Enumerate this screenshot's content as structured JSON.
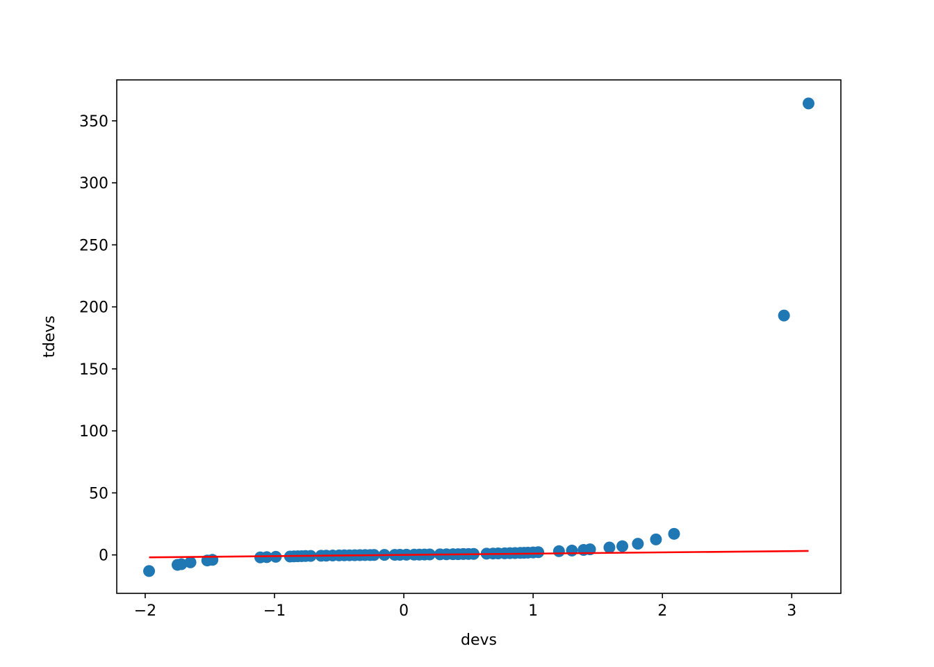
{
  "chart_data": {
    "type": "scatter",
    "title": "",
    "xlabel": "devs",
    "ylabel": "tdevs",
    "xlim": [
      -2.22,
      3.38
    ],
    "ylim": [
      -31,
      383
    ],
    "xticks": [
      -2,
      -1,
      0,
      1,
      2,
      3
    ],
    "xtick_labels": [
      "−2",
      "−1",
      "0",
      "1",
      "2",
      "3"
    ],
    "yticks": [
      0,
      50,
      100,
      150,
      200,
      250,
      300,
      350
    ],
    "ytick_labels": [
      "0",
      "50",
      "100",
      "150",
      "200",
      "250",
      "300",
      "350"
    ],
    "grid": false,
    "legend": "none",
    "colors": {
      "points": "#1f77b4",
      "fit_line": "#ff0000"
    },
    "series": [
      {
        "type": "scatter",
        "x": [
          -1.97,
          -1.75,
          -1.72,
          -1.65,
          -1.52,
          -1.48,
          -1.11,
          -1.06,
          -0.99,
          -0.88,
          -0.85,
          -0.82,
          -0.79,
          -0.76,
          -0.72,
          -0.64,
          -0.6,
          -0.55,
          -0.5,
          -0.46,
          -0.42,
          -0.38,
          -0.34,
          -0.3,
          -0.26,
          -0.23,
          -0.15,
          -0.07,
          -0.03,
          0.02,
          0.08,
          0.12,
          0.16,
          0.2,
          0.28,
          0.33,
          0.38,
          0.42,
          0.46,
          0.5,
          0.54,
          0.64,
          0.69,
          0.73,
          0.78,
          0.82,
          0.86,
          0.9,
          0.93,
          0.96,
          1.0,
          1.04,
          1.2,
          1.3,
          1.39,
          1.44,
          1.59,
          1.69,
          1.81,
          1.95,
          2.09,
          2.94,
          3.13
        ],
        "y": [
          -13,
          -8,
          -7.5,
          -6,
          -4.5,
          -4,
          -2,
          -1.8,
          -1.5,
          -1.3,
          -1.2,
          -1.1,
          -1,
          -0.9,
          -0.8,
          -0.7,
          -0.6,
          -0.5,
          -0.4,
          -0.35,
          -0.3,
          -0.25,
          -0.2,
          -0.15,
          -0.1,
          -0.05,
          0,
          0.05,
          0.1,
          0.15,
          0.2,
          0.25,
          0.3,
          0.35,
          0.45,
          0.5,
          0.55,
          0.6,
          0.7,
          0.75,
          0.8,
          1,
          1.1,
          1.2,
          1.3,
          1.4,
          1.5,
          1.6,
          1.7,
          1.8,
          2,
          2.2,
          3,
          3.5,
          4,
          4.5,
          6,
          7,
          9,
          12.5,
          17,
          193,
          364
        ]
      },
      {
        "type": "line",
        "x": [
          -1.97,
          3.13
        ],
        "y": [
          -2,
          3.2
        ]
      }
    ]
  }
}
